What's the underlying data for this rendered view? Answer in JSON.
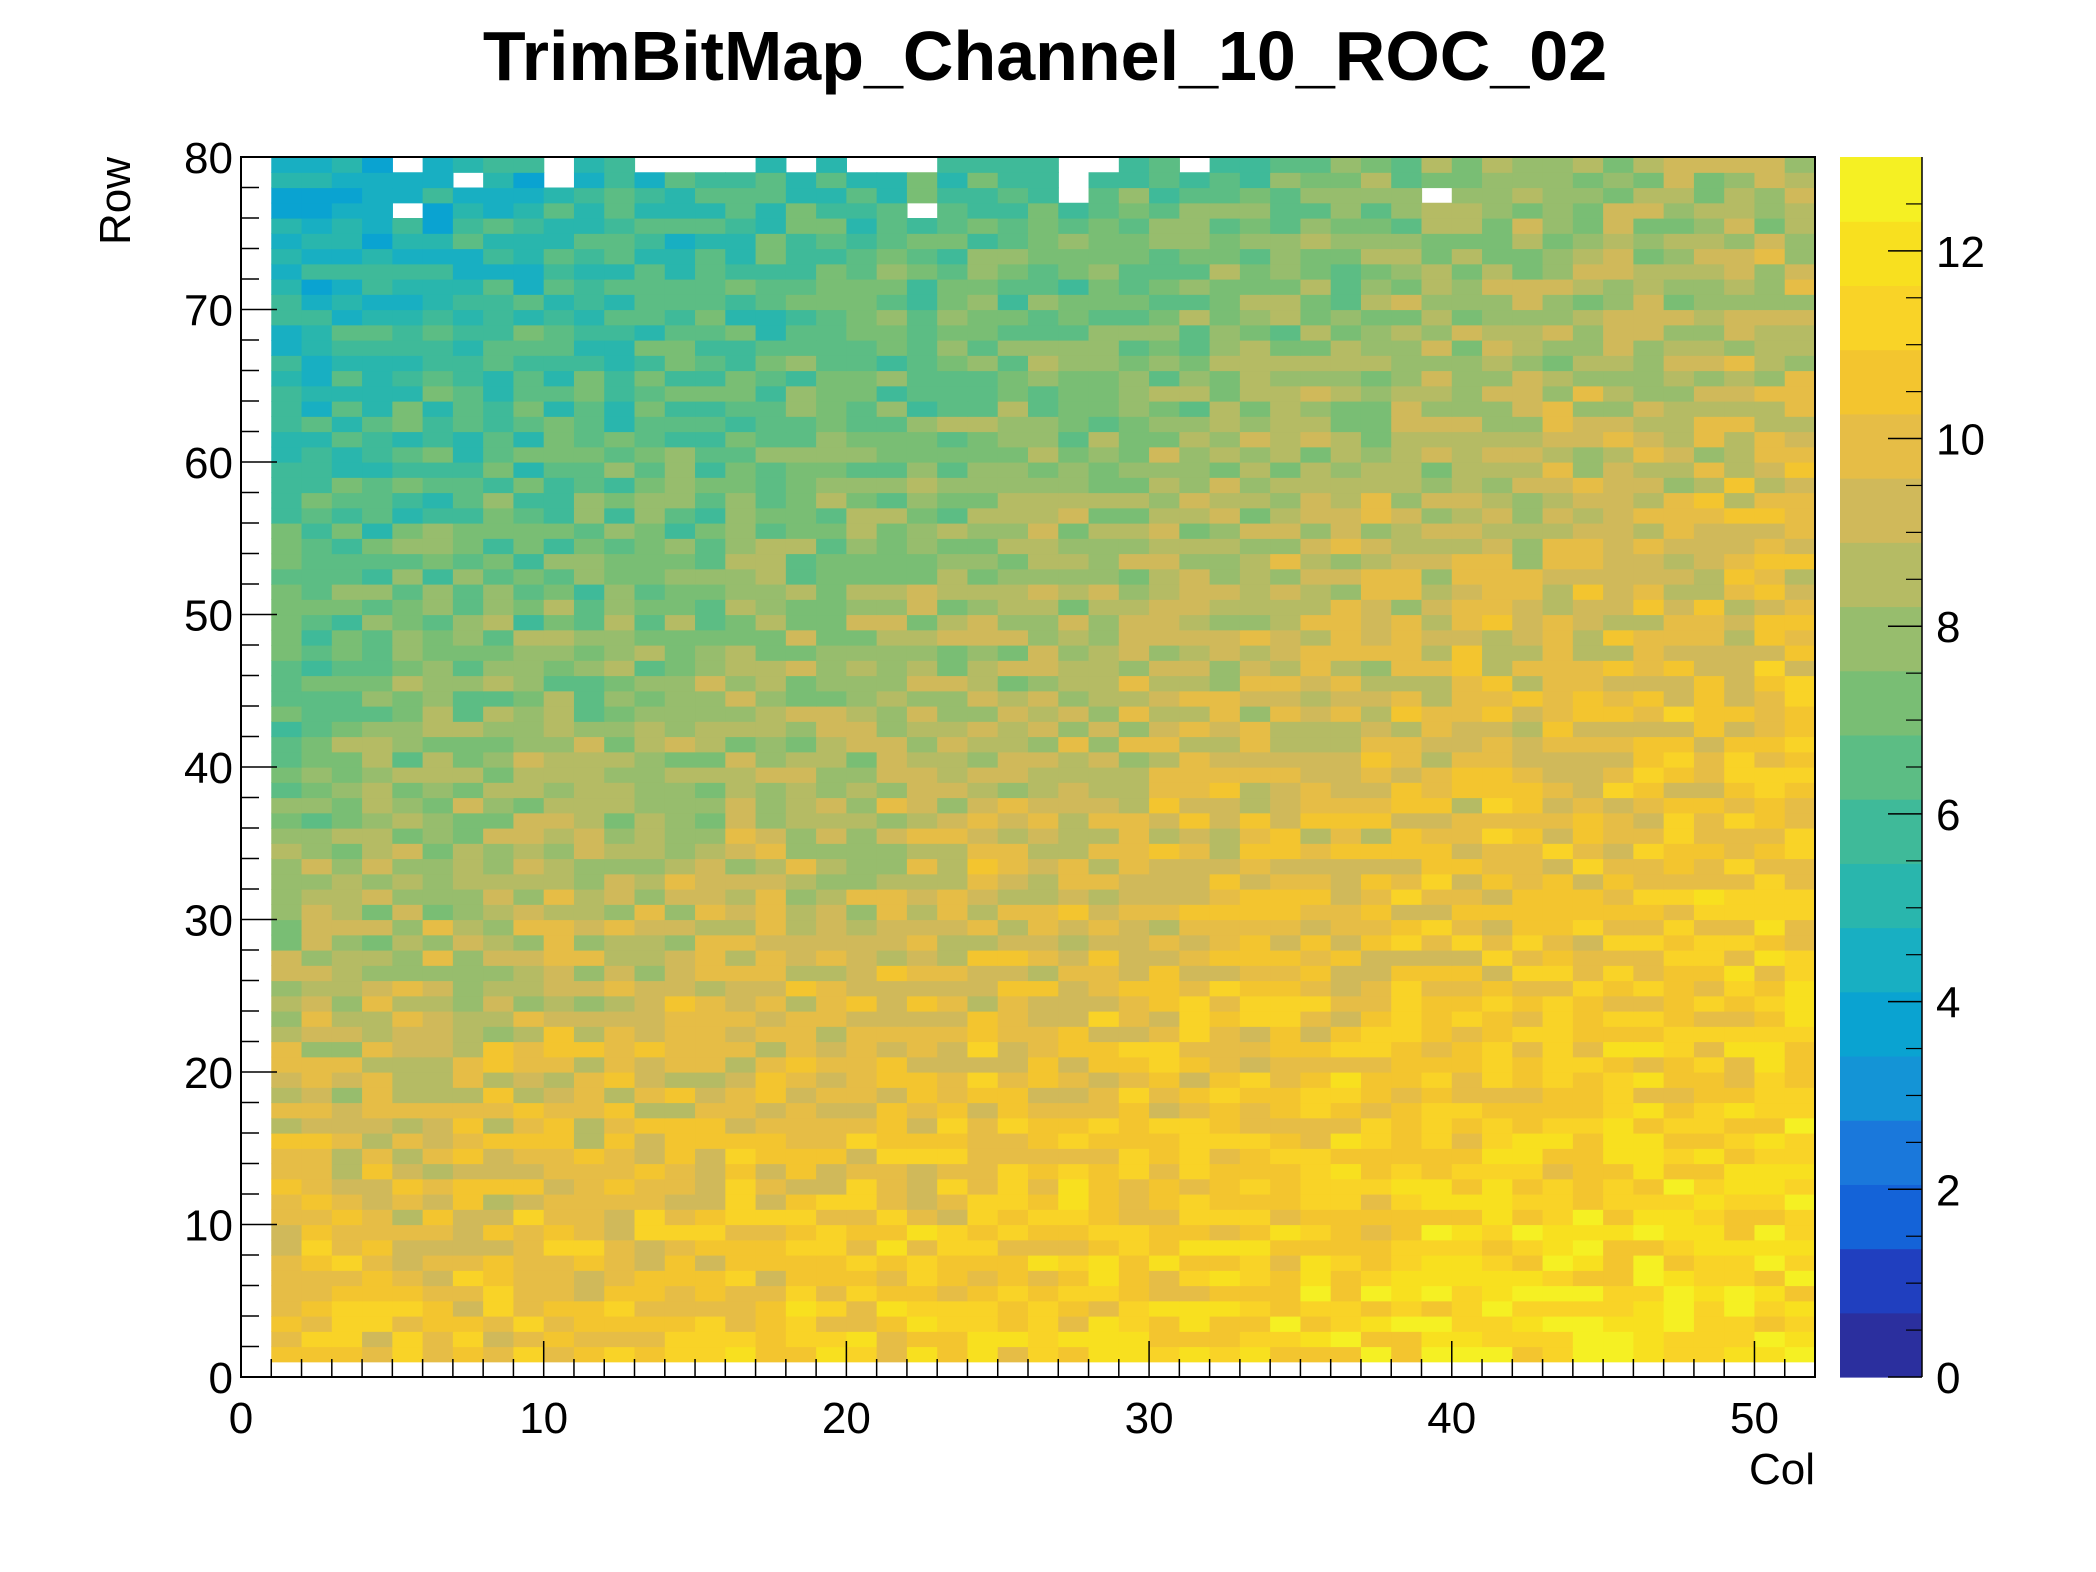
{
  "chart_data": {
    "type": "heatmap",
    "title": "TrimBitMap_Channel_10_ROC_02",
    "xlabel": "Col",
    "ylabel": "Row",
    "xlim": [
      0,
      52
    ],
    "ylim": [
      0,
      80
    ],
    "zlim": [
      0,
      13
    ],
    "x_ticks": [
      0,
      10,
      20,
      30,
      40,
      50
    ],
    "y_ticks": [
      0,
      10,
      20,
      30,
      40,
      50,
      60,
      70,
      80
    ],
    "z_ticks": [
      0,
      2,
      4,
      6,
      8,
      10,
      12
    ],
    "x_bins": {
      "first": 1,
      "last": 51,
      "width": 1
    },
    "y_bins": {
      "first": 1,
      "last": 79,
      "width": 1
    },
    "value_model": "z(col,row) ≈ 10.5 - 6.3*(row/79) + 1.6*(col/51) + 2.6*((row/79)*(col/51))^0.9 with per-pixel noise ±1; approximate reconstruction of the displayed trim-bit pattern",
    "empty_bins": [
      [
        5,
        79
      ],
      [
        10,
        79
      ],
      [
        10,
        78
      ],
      [
        13,
        79
      ],
      [
        14,
        79
      ],
      [
        15,
        79
      ],
      [
        16,
        79
      ],
      [
        18,
        79
      ],
      [
        20,
        79
      ],
      [
        21,
        79
      ],
      [
        22,
        79
      ],
      [
        27,
        79
      ],
      [
        27,
        78
      ],
      [
        27,
        77
      ],
      [
        28,
        79
      ],
      [
        31,
        79
      ],
      [
        7,
        78
      ],
      [
        5,
        76
      ],
      [
        22,
        76
      ],
      [
        39,
        77
      ]
    ],
    "palette": [
      "#2b2f9e",
      "#203fbf",
      "#1463d8",
      "#1a78db",
      "#1494d6",
      "#0aa3d1",
      "#18afc2",
      "#29b6ad",
      "#3fba99",
      "#5cbd84",
      "#79be74",
      "#97bd6d",
      "#b5bb64",
      "#d0b95a",
      "#e6bd46",
      "#f3c52f",
      "#f9d327",
      "#f8e01f",
      "#f5f023"
    ],
    "colorbar": true,
    "grid": false,
    "legend": "none"
  }
}
